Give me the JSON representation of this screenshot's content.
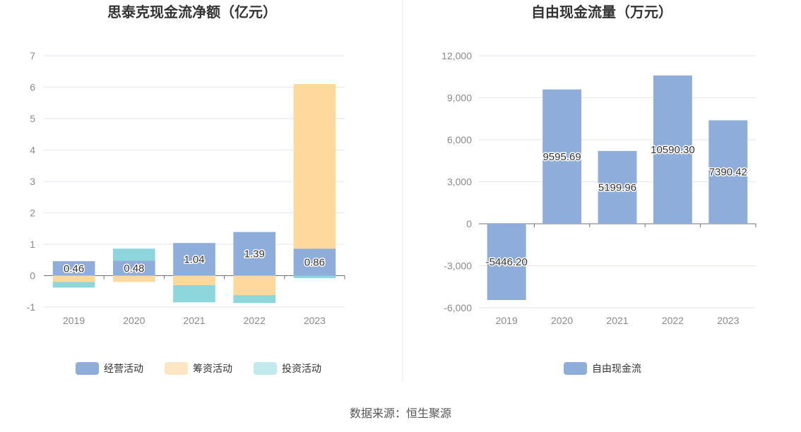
{
  "source": "数据来源：恒生聚源",
  "chart_data": [
    {
      "type": "bar",
      "stacked": true,
      "title": "思泰克现金流净额（亿元）",
      "categories": [
        "2019",
        "2020",
        "2021",
        "2022",
        "2023"
      ],
      "ylim": [
        -1,
        7
      ],
      "yticks": [
        "7",
        "6",
        "5",
        "4",
        "3",
        "2",
        "1",
        "0",
        "-1"
      ],
      "ytick_values": [
        7,
        6,
        5,
        4,
        3,
        2,
        1,
        0,
        -1
      ],
      "series": [
        {
          "name": "经营活动",
          "color": "#8eaddb",
          "values": [
            0.46,
            0.48,
            1.04,
            1.39,
            0.86
          ],
          "labels": [
            "0.46",
            "0.48",
            "1.04",
            "1.39",
            "0.86"
          ]
        },
        {
          "name": "筹资活动",
          "color": "#fed89c",
          "values": [
            -0.2,
            -0.2,
            -0.3,
            -0.62,
            5.24
          ]
        },
        {
          "name": "投资活动",
          "color": "#8dd6dc",
          "values": [
            -0.18,
            0.38,
            -0.55,
            -0.25,
            -0.08
          ]
        }
      ],
      "grid": true,
      "legend": "bottom",
      "legend_colors": [
        "#8eaddb",
        "#fde6c3",
        "#c2e9ec"
      ]
    },
    {
      "type": "bar",
      "title": "自由现金流量（万元）",
      "categories": [
        "2019",
        "2020",
        "2021",
        "2022",
        "2023"
      ],
      "ylim": [
        -6000,
        12000
      ],
      "yticks": [
        "12,000",
        "9,000",
        "6,000",
        "3,000",
        "0",
        "-3,000",
        "-6,000"
      ],
      "ytick_values": [
        12000,
        9000,
        6000,
        3000,
        0,
        -3000,
        -6000
      ],
      "series": [
        {
          "name": "自由现金流",
          "color": "#8eaddb",
          "values": [
            -5446.2,
            9595.69,
            5199.96,
            10590.3,
            7390.42
          ],
          "labels": [
            "-5446.20",
            "9595.69",
            "5199.96",
            "10590.30",
            "7390.42"
          ]
        }
      ],
      "grid": true,
      "legend": "bottom"
    }
  ]
}
